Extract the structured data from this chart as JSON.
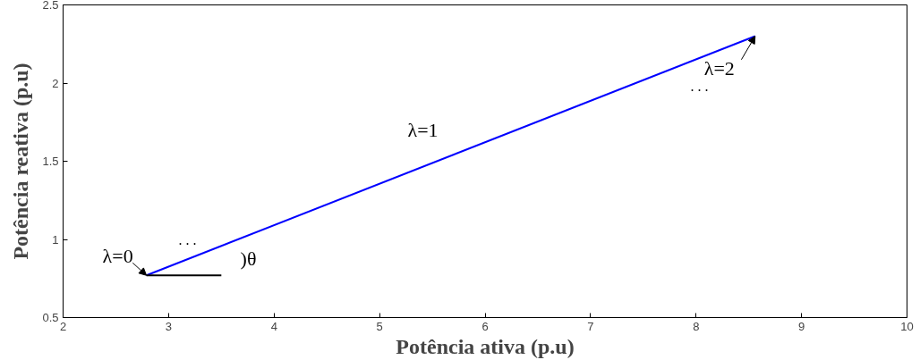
{
  "chart_data": {
    "type": "line",
    "xlabel": "Potência ativa (p.u)",
    "ylabel": "Potência reativa (p.u)",
    "xlim": [
      2,
      10
    ],
    "ylim": [
      0.5,
      2.5
    ],
    "xticks": [
      2,
      3,
      4,
      5,
      6,
      7,
      8,
      9,
      10
    ],
    "yticks": [
      0.5,
      1,
      1.5,
      2,
      2.5
    ],
    "grid": false,
    "series": [
      {
        "color": "#0000ff",
        "x": [
          2.79,
          8.56
        ],
        "values": [
          0.77,
          2.3
        ]
      },
      {
        "color": "#000000",
        "x": [
          2.79,
          3.5
        ],
        "values": [
          0.77,
          0.77
        ]
      }
    ],
    "annotations": [
      {
        "text": "λ=0",
        "x": 2.79,
        "y": 0.77
      },
      "λ=1",
      {
        "text": "λ=2",
        "x": 8.56,
        "y": 2.3
      },
      ")θ",
      ". . .",
      ". . ."
    ]
  }
}
